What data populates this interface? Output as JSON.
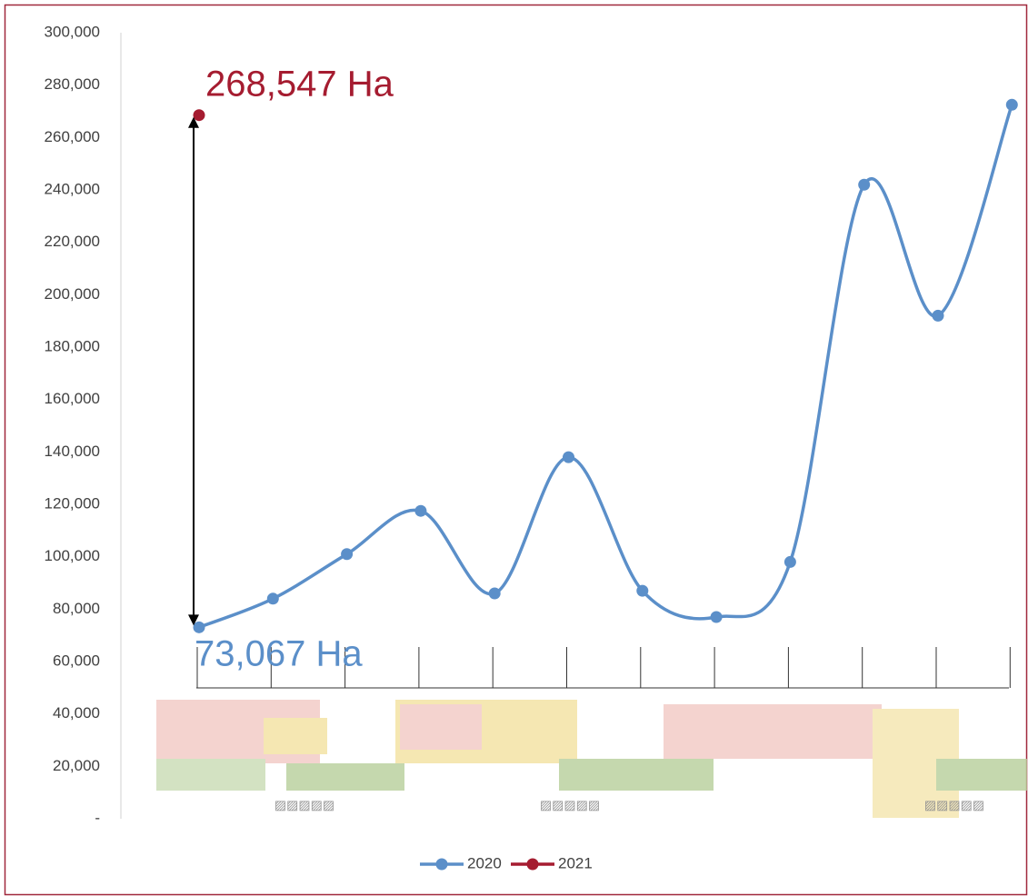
{
  "chart_data": {
    "type": "line",
    "categories": [
      null,
      null,
      null,
      null,
      null,
      null,
      null,
      null,
      null,
      null,
      null,
      null
    ],
    "series": [
      {
        "name": "2020",
        "color": "#5b8fc9",
        "values": [
          73067,
          84000,
          101000,
          117500,
          86000,
          138000,
          87000,
          77000,
          98000,
          242000,
          192000,
          272500
        ]
      },
      {
        "name": "2021",
        "color": "#a51c30",
        "values": [
          268547,
          null,
          null,
          null,
          null,
          null,
          null,
          null,
          null,
          null,
          null,
          null
        ]
      }
    ],
    "ylim": [
      0,
      300000
    ],
    "yticks": [
      {
        "value": 0,
        "label": "-"
      },
      {
        "value": 20000,
        "label": "20,000"
      },
      {
        "value": 40000,
        "label": "40,000"
      },
      {
        "value": 60000,
        "label": "60,000"
      },
      {
        "value": 80000,
        "label": "80,000"
      },
      {
        "value": 100000,
        "label": "100,000"
      },
      {
        "value": 120000,
        "label": "120,000"
      },
      {
        "value": 140000,
        "label": "140,000"
      },
      {
        "value": 160000,
        "label": "160,000"
      },
      {
        "value": 180000,
        "label": "180,000"
      },
      {
        "value": 200000,
        "label": "200,000"
      },
      {
        "value": 220000,
        "label": "220,000"
      },
      {
        "value": 240000,
        "label": "240,000"
      },
      {
        "value": 260000,
        "label": "260,000"
      },
      {
        "value": 280000,
        "label": "280,000"
      },
      {
        "value": 300000,
        "label": "300,000"
      }
    ],
    "annotations": [
      {
        "text": "268,547 Ha",
        "color": "#a51c30"
      },
      {
        "text": "73,067 Ha",
        "color": "#5b8fc9"
      }
    ],
    "legend": "bottom"
  }
}
